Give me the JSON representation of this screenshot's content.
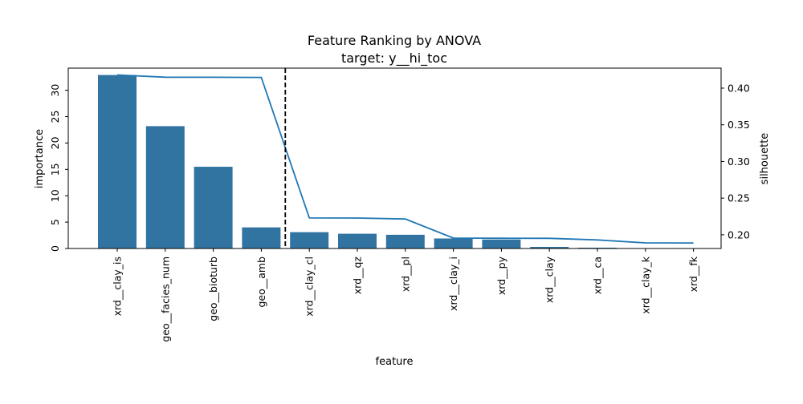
{
  "chart_data": {
    "type": "bar",
    "title": "Feature Ranking by ANOVA",
    "subtitle": "target: y__hi_toc",
    "xlabel": "feature",
    "ylabel": "importance",
    "y2label": "silhouette",
    "categories": [
      "xrd__clay_is",
      "geo__facies_num",
      "geo__bioturb",
      "geo__amb",
      "xrd__clay_cl",
      "xrd__qz",
      "xrd__pl",
      "xrd__clay_i",
      "xrd__py",
      "xrd__clay",
      "xrd__ca",
      "xrd__clay_k",
      "xrd__fk"
    ],
    "series": [
      {
        "axis": "left",
        "kind": "bar",
        "color": "#3274a1",
        "values": [
          32.9,
          23.2,
          15.5,
          4.0,
          3.1,
          2.8,
          2.6,
          1.9,
          1.7,
          0.3,
          0.15,
          0.05,
          0.03
        ]
      },
      {
        "axis": "right",
        "kind": "line",
        "color": "#1f77b4",
        "values": [
          0.418,
          0.415,
          0.4148,
          0.4146,
          0.223,
          0.2228,
          0.2215,
          0.1955,
          0.1953,
          0.1952,
          0.193,
          0.189,
          0.1888
        ]
      }
    ],
    "ylim": [
      0,
      34.2
    ],
    "y2lim": [
      0.1813,
      0.4273
    ],
    "yticks": [
      0,
      5,
      10,
      15,
      20,
      25,
      30
    ],
    "y2ticks": [
      0.2,
      0.25,
      0.3,
      0.35,
      0.4
    ],
    "y2tick_labels": [
      "0.20",
      "0.25",
      "0.30",
      "0.35",
      "0.40"
    ],
    "cutoff_after_index": 3,
    "cutoff_style": "dashed black vertical line",
    "grid": false,
    "legend": "none"
  }
}
